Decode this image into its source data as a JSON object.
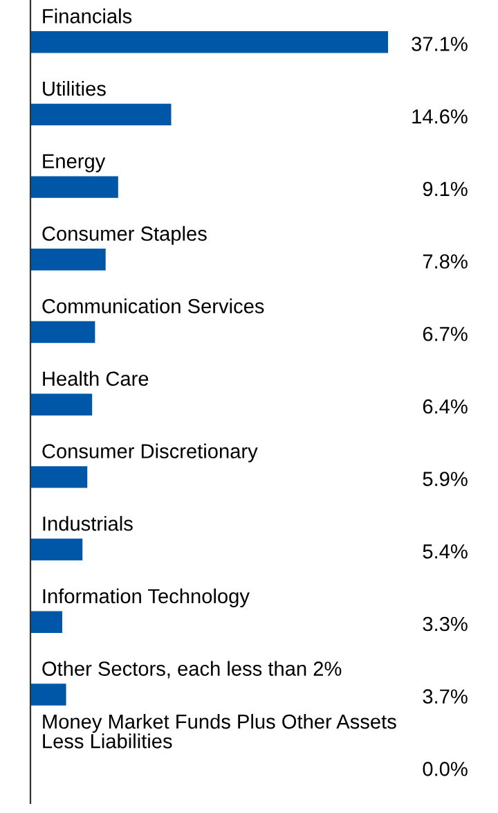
{
  "chart_data": {
    "type": "bar",
    "orientation": "horizontal",
    "categories": [
      "Financials",
      "Utilities",
      "Energy",
      "Consumer Staples",
      "Communication Services",
      "Health Care",
      "Consumer Discretionary",
      "Industrials",
      "Information Technology",
      "Other Sectors, each less than 2%",
      "Money Market Funds Plus Other Assets\nLess Liabilities"
    ],
    "values": [
      37.1,
      14.6,
      9.1,
      7.8,
      6.7,
      6.4,
      5.9,
      5.4,
      3.3,
      3.7,
      0.0
    ],
    "value_labels": [
      "37.1%",
      "14.6%",
      "9.1%",
      "7.8%",
      "6.7%",
      "6.4%",
      "5.9%",
      "5.4%",
      "3.3%",
      "3.7%",
      "0.0%"
    ],
    "color": "#0057a8"
  }
}
